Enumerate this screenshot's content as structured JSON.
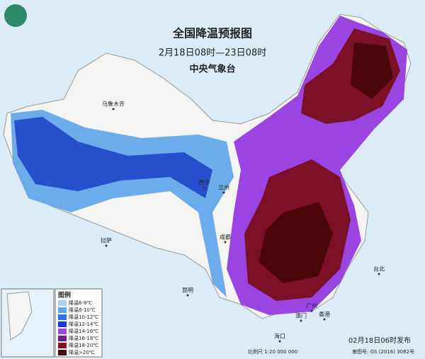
{
  "header": {
    "title": "全国降温预报图",
    "period": "2月18日08时—23日08时",
    "issuer": "中央气象台"
  },
  "legend": {
    "title": "图例",
    "items": [
      {
        "label": "降温6-8℃",
        "color": "#a9d1f2"
      },
      {
        "label": "降温8-10℃",
        "color": "#5ea4ea"
      },
      {
        "label": "降温10-12℃",
        "color": "#2e73dc"
      },
      {
        "label": "降温12-14℃",
        "color": "#1c3ec6"
      },
      {
        "label": "降温14-16℃",
        "color": "#9a44e2"
      },
      {
        "label": "降温16-18℃",
        "color": "#6e1c92"
      },
      {
        "label": "降温18-20℃",
        "color": "#7c1028"
      },
      {
        "label": "降温>20℃",
        "color": "#4a0608"
      }
    ]
  },
  "cities": [
    {
      "name": "乌鲁木齐"
    },
    {
      "name": "拉萨"
    },
    {
      "name": "西宁"
    },
    {
      "name": "兰州"
    },
    {
      "name": "成都"
    },
    {
      "name": "昆明"
    },
    {
      "name": "广州"
    },
    {
      "name": "澳门"
    },
    {
      "name": "香港"
    },
    {
      "name": "海口"
    },
    {
      "name": "台北"
    }
  ],
  "footer": {
    "issued": "02月18日06时发布",
    "scale": "比例尺 1:20 000 000",
    "approval": "审图号: GS (2016) 3082号"
  }
}
